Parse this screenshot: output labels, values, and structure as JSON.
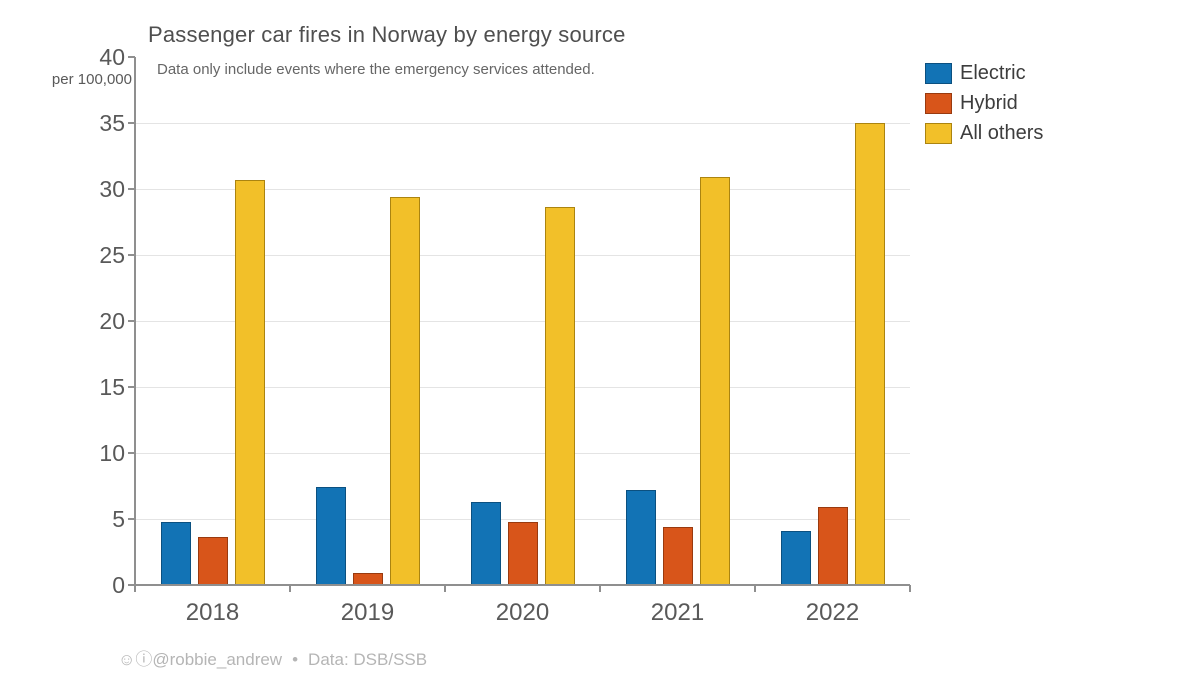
{
  "header": {
    "title": "Passenger car fires in Norway by energy source",
    "subtitle": "Data only include events where the emergency services attended."
  },
  "chart_data": {
    "type": "bar",
    "categories": [
      "2018",
      "2019",
      "2020",
      "2021",
      "2022"
    ],
    "series": [
      {
        "name": "Electric",
        "color": "#1273b5",
        "edge": "#0b5080",
        "values": [
          4.8,
          7.4,
          6.3,
          7.2,
          4.1
        ]
      },
      {
        "name": "Hybrid",
        "color": "#d8551a",
        "edge": "#993a0f",
        "values": [
          3.6,
          0.9,
          4.8,
          4.4,
          5.9
        ]
      },
      {
        "name": "All others",
        "color": "#f2c029",
        "edge": "#ab8410",
        "values": [
          30.7,
          29.4,
          28.6,
          30.9,
          35.0
        ]
      }
    ],
    "title": "Passenger car fires in Norway by energy source",
    "xlabel": "",
    "ylabel": "per 100,000",
    "ylim": [
      0,
      40
    ],
    "ytick_step": 5,
    "grid": true,
    "legend_position": "top-right"
  },
  "footer": {
    "credit": "☺ⓘ@robbie_andrew",
    "separator": "•",
    "source": "Data: DSB/SSB"
  }
}
